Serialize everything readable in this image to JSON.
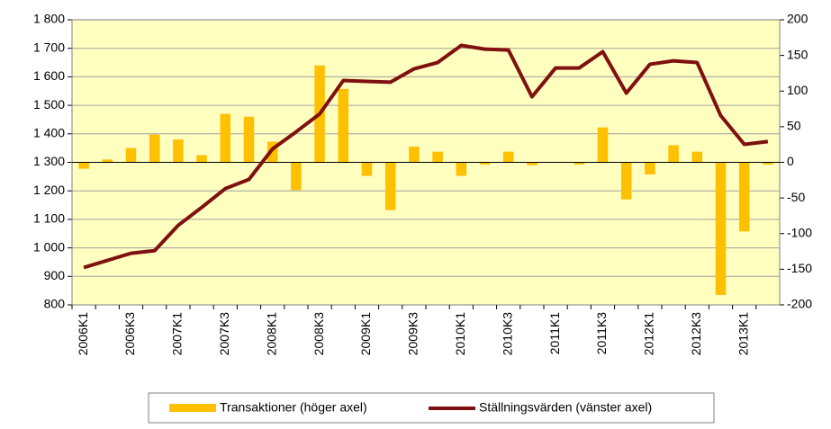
{
  "chart_data": {
    "type": "bar-line",
    "categories": [
      "2006K1",
      null,
      "2006K3",
      null,
      "2007K1",
      null,
      "2007K3",
      null,
      "2008K1",
      null,
      "2008K3",
      null,
      "2009K1",
      null,
      "2009K3",
      null,
      "2010K1",
      null,
      "2010K3",
      null,
      "2011K1",
      null,
      "2011K3",
      null,
      "2012K1",
      null,
      "2012K3",
      null,
      "2013K1",
      null
    ],
    "series": [
      {
        "name": "Transaktioner (höger axel)",
        "color": "#ffc000",
        "type": "bar",
        "axis": "y2",
        "values": [
          -9,
          4,
          20,
          39,
          32,
          10,
          68,
          64,
          29,
          -39,
          136,
          103,
          -19,
          -67,
          22,
          15,
          -19,
          -3,
          15,
          -4,
          0,
          -3,
          49,
          -52,
          -17,
          24,
          15,
          -186,
          -97,
          -3
        ]
      },
      {
        "name": "Ställningsvärden (vänster axel)",
        "color": "#7f1010",
        "type": "line",
        "values": [
          931,
          956,
          981,
          990,
          1079,
          1142,
          1208,
          1240,
          1347,
          1407,
          1470,
          1587,
          1584,
          1581,
          1628,
          1650,
          1710,
          1697,
          1694,
          1530,
          1631,
          1631,
          1688,
          1543,
          1644,
          1656,
          1650,
          1464,
          1363,
          1373
        ]
      }
    ],
    "ylim": [
      800,
      1800
    ],
    "yticks": [
      {
        "value": 800,
        "label": "800"
      },
      {
        "value": 900,
        "label": "900"
      },
      {
        "value": 1000,
        "label": "1 000"
      },
      {
        "value": 1100,
        "label": "1 100"
      },
      {
        "value": 1200,
        "label": "1 200"
      },
      {
        "value": 1300,
        "label": "1 300"
      },
      {
        "value": 1400,
        "label": "1 400"
      },
      {
        "value": 1500,
        "label": "1 500"
      },
      {
        "value": 1600,
        "label": "1 600"
      },
      {
        "value": 1700,
        "label": "1 700"
      },
      {
        "value": 1800,
        "label": "1 800"
      }
    ],
    "y2lim": [
      -200,
      200
    ],
    "y2ticks": [
      -200,
      -150,
      -100,
      -50,
      0,
      50,
      100,
      150,
      200
    ],
    "grid": true,
    "background": "#ffffc0",
    "legend": "bottom"
  }
}
